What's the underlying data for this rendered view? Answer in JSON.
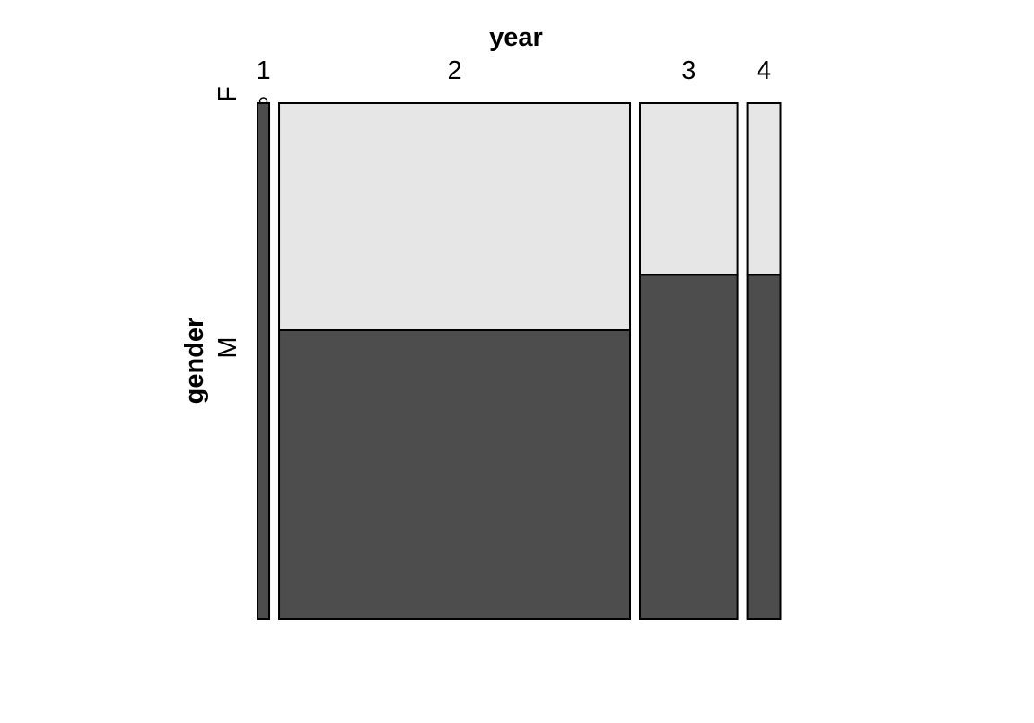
{
  "chart_data": {
    "type": "mosaic",
    "x_variable": "year",
    "y_variable": "gender",
    "x_categories": [
      "1",
      "2",
      "3",
      "4"
    ],
    "y_categories": [
      "F",
      "M"
    ],
    "column_share": [
      0.024,
      0.72,
      0.2,
      0.068
    ],
    "cells": [
      {
        "year": "1",
        "F": 0.0,
        "M": 1.0
      },
      {
        "year": "2",
        "F": 0.44,
        "M": 0.56
      },
      {
        "year": "3",
        "F": 0.333,
        "M": 0.667
      },
      {
        "year": "4",
        "F": 0.333,
        "M": 0.667
      }
    ],
    "colors": {
      "F": "#e6e6e6",
      "M": "#4d4d4d",
      "border": "#000000"
    },
    "grid": false
  }
}
